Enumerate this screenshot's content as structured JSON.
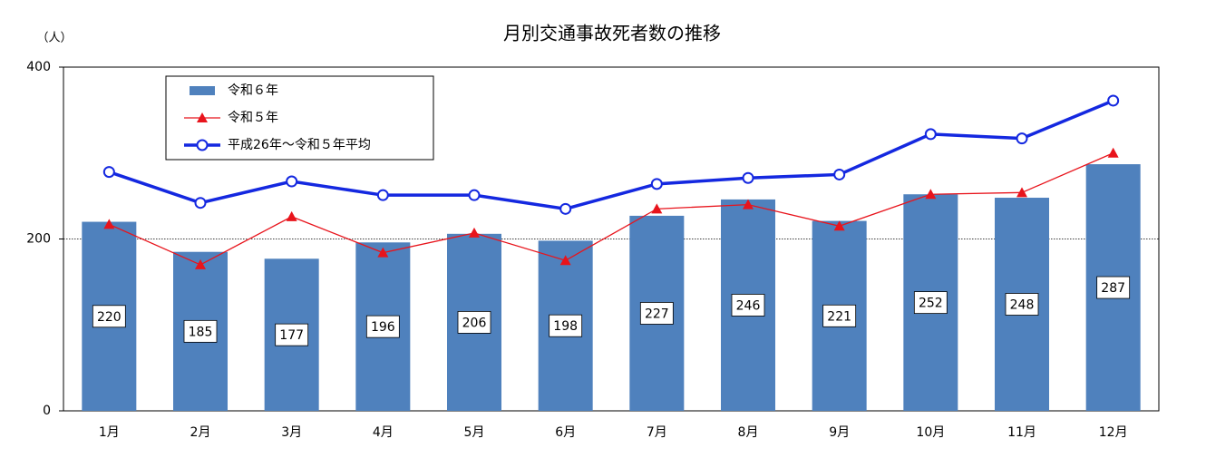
{
  "chart_data": {
    "type": "bar",
    "title": "月別交通事故死者数の推移",
    "y_axis_label": "（人）",
    "categories": [
      "1月",
      "2月",
      "3月",
      "4月",
      "5月",
      "6月",
      "7月",
      "8月",
      "9月",
      "10月",
      "11月",
      "12月"
    ],
    "series": [
      {
        "name": "令和６年",
        "type": "bar",
        "color": "#4f81bd",
        "values": [
          220,
          185,
          177,
          196,
          206,
          198,
          227,
          246,
          221,
          252,
          248,
          287
        ]
      },
      {
        "name": "令和５年",
        "type": "line",
        "marker": "triangle",
        "color": "#e8141c",
        "values": [
          217,
          170,
          226,
          184,
          207,
          175,
          235,
          240,
          215,
          252,
          254,
          300
        ]
      },
      {
        "name": "平成26年～令和５年平均",
        "type": "line",
        "marker": "circle",
        "color": "#1428e0",
        "values": [
          278,
          242,
          267,
          251,
          251,
          235,
          264,
          271,
          275,
          322,
          317,
          361
        ]
      }
    ],
    "ylim": [
      0,
      400
    ],
    "yticks": [
      0,
      200,
      400
    ],
    "grid": true,
    "legend": "top-left"
  }
}
